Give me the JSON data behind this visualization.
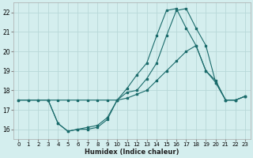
{
  "xlabel": "Humidex (Indice chaleur)",
  "bg_color": "#d4eeee",
  "grid_color": "#b8d8d8",
  "line_color": "#1a6b6b",
  "xlim": [
    -0.5,
    23.5
  ],
  "ylim": [
    15.5,
    22.5
  ],
  "xticks": [
    0,
    1,
    2,
    3,
    4,
    5,
    6,
    7,
    8,
    9,
    10,
    11,
    12,
    13,
    14,
    15,
    16,
    17,
    18,
    19,
    20,
    21,
    22,
    23
  ],
  "yticks": [
    16,
    17,
    18,
    19,
    20,
    21,
    22
  ],
  "line1_x": [
    0,
    1,
    2,
    3,
    4,
    5,
    6,
    7,
    8,
    9,
    10,
    11,
    12,
    13,
    14,
    15,
    16,
    17,
    18,
    19,
    20,
    21,
    22,
    23
  ],
  "line1_y": [
    17.5,
    17.5,
    17.5,
    17.5,
    17.5,
    17.5,
    17.5,
    17.5,
    17.5,
    17.5,
    17.5,
    17.6,
    17.8,
    18.0,
    18.5,
    19.0,
    19.5,
    20.0,
    20.3,
    19.0,
    18.5,
    17.5,
    17.5,
    17.7
  ],
  "line2_x": [
    0,
    1,
    2,
    3,
    4,
    5,
    6,
    7,
    8,
    9,
    10,
    11,
    12,
    13,
    14,
    15,
    16,
    17,
    18,
    19,
    20,
    21,
    22,
    23
  ],
  "line2_y": [
    17.5,
    17.5,
    17.5,
    17.5,
    16.3,
    15.9,
    16.0,
    16.0,
    16.1,
    16.5,
    17.5,
    18.1,
    18.8,
    19.4,
    20.8,
    22.1,
    22.2,
    21.2,
    20.3,
    19.0,
    18.4,
    17.5,
    17.5,
    17.7
  ],
  "line3_x": [
    3,
    4,
    5,
    6,
    7,
    8,
    9,
    10,
    11,
    12,
    13,
    14,
    15,
    16,
    17,
    18,
    19,
    20,
    21,
    22,
    23
  ],
  "line3_y": [
    17.5,
    16.3,
    15.9,
    16.0,
    16.1,
    16.2,
    16.6,
    17.5,
    17.9,
    18.0,
    18.6,
    19.4,
    20.8,
    22.1,
    22.2,
    21.2,
    20.3,
    18.4,
    17.5,
    17.5,
    17.7
  ]
}
